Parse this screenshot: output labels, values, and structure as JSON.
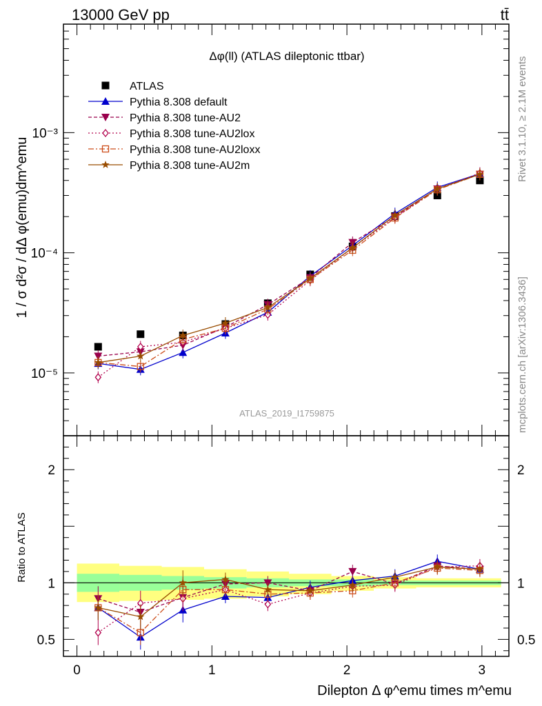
{
  "header": {
    "energy_label": "13000 GeV pp",
    "process_label": "tt̄",
    "side_label_top": "Rivet 3.1.10, ≥ 2.1M events",
    "side_label_bottom": "mcplots.cern.ch [arXiv:1306.3436]",
    "watermark": "ATLAS_2019_I1759875"
  },
  "colors": {
    "data": "#000000",
    "default": "#0000cc",
    "au2": "#99004c",
    "au2lox": "#b2004c",
    "au2loxx": "#cc4c19",
    "au2m": "#994c00",
    "band_inner": "#99ff99",
    "band_outer": "#ffff80"
  },
  "chart_data": [
    {
      "type": "line",
      "panel": "main",
      "title": "Δφ(ll) (ATLAS dileptonic ttbar)",
      "ylabel": "1 / σ  d²σ / dΔ φ(emu)dm^emu",
      "xlim": [
        -0.1,
        3.2
      ],
      "ylim": [
        3e-06,
        0.008
      ],
      "yscale": "log",
      "y_ticks": [
        "10⁻⁵",
        "10⁻⁴",
        "10⁻³"
      ],
      "x": [
        0.157,
        0.471,
        0.785,
        1.1,
        1.414,
        1.728,
        2.042,
        2.356,
        2.67,
        2.985
      ],
      "legend_position": "top-left",
      "series": [
        {
          "key": "data",
          "name": "ATLAS",
          "marker": "square",
          "values": [
            1.65e-05,
            2.1e-05,
            2.05e-05,
            2.55e-05,
            3.8e-05,
            6.6e-05,
            0.000113,
            0.000202,
            0.0003,
            0.0004
          ]
        },
        {
          "key": "default",
          "name": "Pythia 8.308 default",
          "marker": "triangle-up",
          "dash": "",
          "values": [
            1.2e-05,
            1.07e-05,
            1.48e-05,
            2.15e-05,
            3.2e-05,
            6.4e-05,
            0.000115,
            0.000212,
            0.00035,
            0.000455
          ]
        },
        {
          "key": "au2",
          "name": "Pythia 8.308 tune-AU2",
          "marker": "triangle-down",
          "dash": "5,3",
          "values": [
            1.38e-05,
            1.5e-05,
            1.7e-05,
            2.4e-05,
            3.7e-05,
            6.2e-05,
            0.000122,
            0.0002,
            0.00034,
            0.00045
          ]
        },
        {
          "key": "au2lox",
          "name": "Pythia 8.308 tune-AU2lox",
          "marker": "diamond",
          "dash": "2,3",
          "values": [
            9.2e-06,
            1.65e-05,
            1.8e-05,
            2.35e-05,
            3.05e-05,
            5.9e-05,
            0.00011,
            0.000197,
            0.00034,
            0.00046
          ]
        },
        {
          "key": "au2loxx",
          "name": "Pythia 8.308 tune-AU2loxx",
          "marker": "square-open",
          "dash": "8,3,2,3",
          "values": [
            1.22e-05,
            1.13e-05,
            1.9e-05,
            2.35e-05,
            3.4e-05,
            6e-05,
            0.000105,
            0.000195,
            0.000335,
            0.00045
          ]
        },
        {
          "key": "au2m",
          "name": "Pythia 8.308 tune-AU2m",
          "marker": "star",
          "dash": "",
          "values": [
            1.22e-05,
            1.38e-05,
            2.05e-05,
            2.6e-05,
            3.5e-05,
            6.1e-05,
            0.00011,
            0.000205,
            0.00034,
            0.00045
          ]
        }
      ]
    },
    {
      "type": "line",
      "panel": "ratio",
      "ylabel": "Ratio to ATLAS",
      "xlabel": "Dilepton Δ φ^emu times m^emu",
      "xlim": [
        -0.1,
        3.2
      ],
      "ylim": [
        0.35,
        2.3
      ],
      "x_ticks": [
        "0",
        "1",
        "2",
        "3"
      ],
      "y_ticks": [
        "0.5",
        "1",
        "2"
      ],
      "x": [
        0.157,
        0.471,
        0.785,
        1.1,
        1.414,
        1.728,
        2.042,
        2.356,
        2.67,
        2.985
      ],
      "bands": {
        "edges": [
          0.0,
          0.314,
          0.628,
          0.942,
          1.257,
          1.571,
          1.885,
          2.199,
          2.513,
          2.827,
          3.142
        ],
        "outer_lo": [
          0.83,
          0.84,
          0.85,
          0.86,
          0.88,
          0.9,
          0.93,
          0.95,
          0.96,
          0.96
        ],
        "outer_hi": [
          1.17,
          1.15,
          1.14,
          1.12,
          1.1,
          1.08,
          1.06,
          1.05,
          1.04,
          1.04
        ],
        "inner_lo": [
          0.92,
          0.93,
          0.94,
          0.95,
          0.96,
          0.97,
          0.97,
          0.98,
          0.98,
          0.98
        ],
        "inner_hi": [
          1.08,
          1.07,
          1.06,
          1.05,
          1.04,
          1.03,
          1.03,
          1.02,
          1.02,
          1.02
        ]
      },
      "series": [
        {
          "key": "default",
          "name": "Pythia 8.308 default",
          "marker": "triangle-up",
          "dash": "",
          "values": [
            0.78,
            0.52,
            0.76,
            0.88,
            0.87,
            0.96,
            1.02,
            1.06,
            1.19,
            1.12
          ]
        },
        {
          "key": "au2",
          "name": "Pythia 8.308 tune-AU2",
          "marker": "triangle-down",
          "dash": "5,3",
          "values": [
            0.86,
            0.74,
            0.87,
            0.99,
            1.0,
            0.93,
            1.1,
            0.99,
            1.15,
            1.12
          ]
        },
        {
          "key": "au2lox",
          "name": "Pythia 8.308 tune-AU2lox",
          "marker": "diamond",
          "dash": "2,3",
          "values": [
            0.56,
            0.82,
            0.86,
            0.94,
            0.81,
            0.91,
            0.97,
            0.98,
            1.14,
            1.15
          ]
        },
        {
          "key": "au2loxx",
          "name": "Pythia 8.308 tune-AU2loxx",
          "marker": "square-open",
          "dash": "8,3,2,3",
          "values": [
            0.78,
            0.56,
            0.94,
            0.94,
            0.9,
            0.91,
            0.93,
            1.0,
            1.13,
            1.11
          ]
        },
        {
          "key": "au2m",
          "name": "Pythia 8.308 tune-AU2m",
          "marker": "star",
          "dash": "",
          "values": [
            0.78,
            0.7,
            1.0,
            1.03,
            0.94,
            0.93,
            0.98,
            1.05,
            1.14,
            1.12
          ]
        }
      ]
    }
  ]
}
